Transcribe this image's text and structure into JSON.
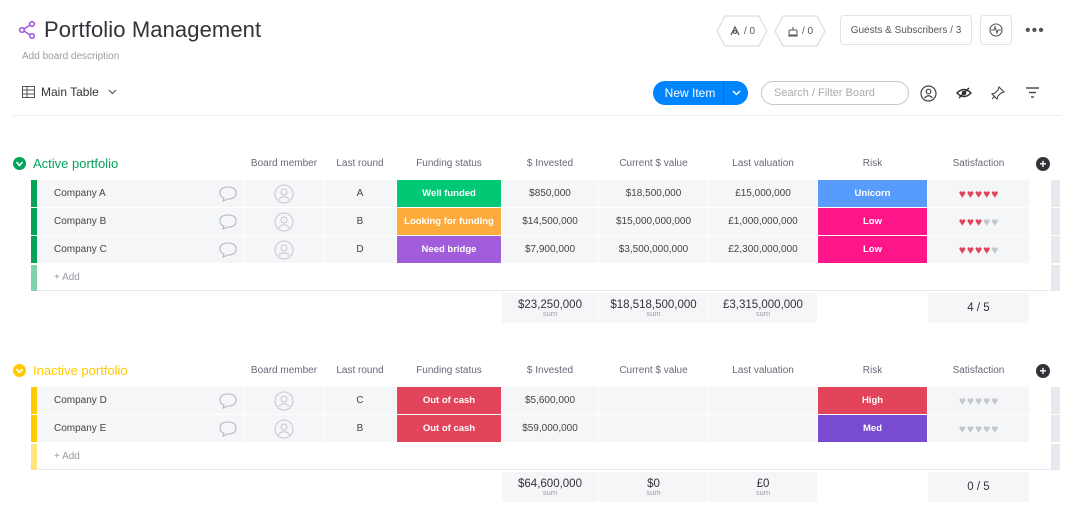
{
  "header": {
    "title": "Portfolio Management",
    "description": "Add board description",
    "activity_count": "/ 0",
    "updates_count": "/ 0",
    "guests_label": "Guests & Subscribers / 3",
    "more_label": "•••"
  },
  "toolbar": {
    "view_label": "Main Table",
    "new_item_label": "New Item",
    "search_placeholder": "Search / Filter Board"
  },
  "columns": {
    "board_member": "Board member",
    "last_round": "Last round",
    "funding_status": "Funding status",
    "invested": "$ Invested",
    "current_value": "Current $ value",
    "last_valuation": "Last valuation",
    "risk": "Risk",
    "satisfaction": "Satisfaction"
  },
  "groups": [
    {
      "title": "Active portfolio",
      "color": "#00a359",
      "rows": [
        {
          "name": "Company A",
          "round": "A",
          "status": "Well funded",
          "status_color": "#00c875",
          "invested": "$850,000",
          "current": "$18,500,000",
          "valuation": "£15,000,000",
          "risk": "Unicorn",
          "risk_color": "#579bfc",
          "rating": 5
        },
        {
          "name": "Company B",
          "round": "B",
          "status": "Looking for funding",
          "status_color": "#fdab3d",
          "invested": "$14,500,000",
          "current": "$15,000,000,000",
          "valuation": "£1,000,000,000",
          "risk": "Low",
          "risk_color": "#ff158a",
          "rating": 3
        },
        {
          "name": "Company C",
          "round": "D",
          "status": "Need bridge",
          "status_color": "#a25ddc",
          "invested": "$7,900,000",
          "current": "$3,500,000,000",
          "valuation": "£2,300,000,000",
          "risk": "Low",
          "risk_color": "#ff158a",
          "rating": 4
        }
      ],
      "add_label": "+ Add",
      "sums": {
        "invested": "$23,250,000",
        "current": "$18,518,500,000",
        "valuation": "£3,315,000,000",
        "label": "sum",
        "satisfaction": "4 / 5"
      }
    },
    {
      "title": "Inactive portfolio",
      "color": "#ffcb00",
      "rows": [
        {
          "name": "Company D",
          "round": "C",
          "status": "Out of cash",
          "status_color": "#e2445c",
          "invested": "$5,600,000",
          "current": "",
          "valuation": "",
          "risk": "High",
          "risk_color": "#e2445c",
          "rating": 0
        },
        {
          "name": "Company E",
          "round": "B",
          "status": "Out of cash",
          "status_color": "#e2445c",
          "invested": "$59,000,000",
          "current": "",
          "valuation": "",
          "risk": "Med",
          "risk_color": "#784bd1",
          "rating": 0
        }
      ],
      "add_label": "+ Add",
      "sums": {
        "invested": "$64,600,000",
        "current": "$0",
        "valuation": "£0",
        "label": "sum",
        "satisfaction": "0 / 5"
      }
    }
  ],
  "icons": {
    "board": "share-icon",
    "view": "table-icon",
    "person": "person-icon",
    "chat": "chat-bubble-icon"
  },
  "colors": {
    "accent": "#0085ff",
    "heart_on": "#e2445c",
    "heart_off": "#c5c7d0"
  }
}
